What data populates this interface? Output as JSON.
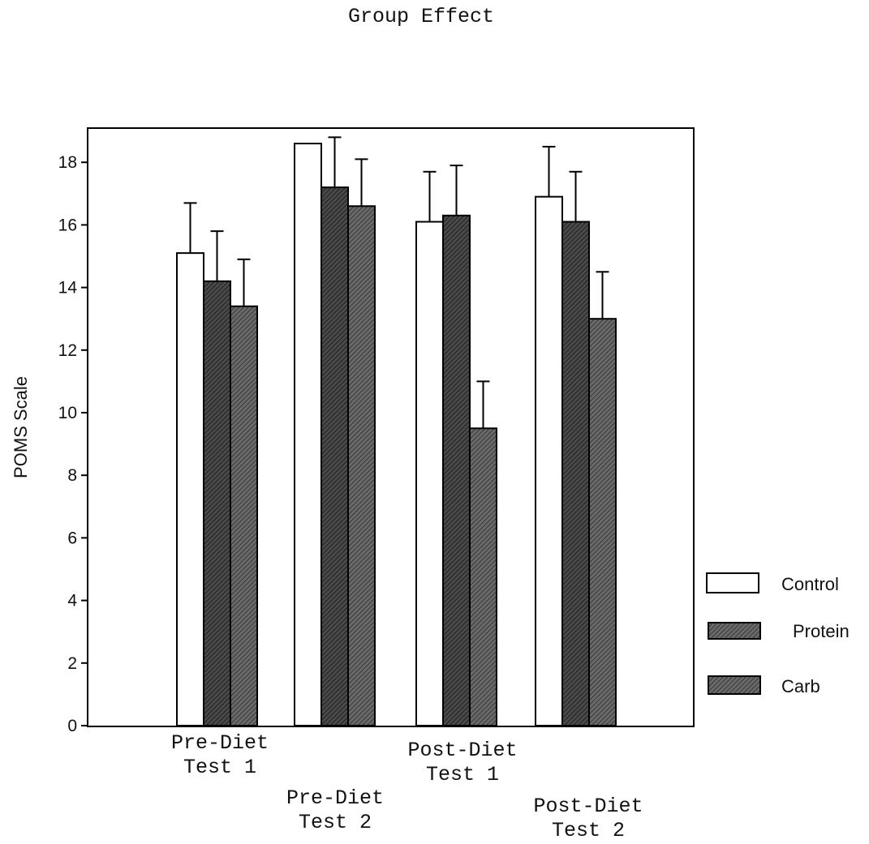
{
  "chart_data": {
    "type": "bar",
    "title": "Group Effect",
    "ylabel": "POMS Scale",
    "xlabel": "",
    "ylim": [
      0,
      19
    ],
    "yticks": [
      0,
      2,
      4,
      6,
      8,
      10,
      12,
      14,
      16,
      18
    ],
    "categories": [
      [
        "Pre-Diet",
        "Test 1"
      ],
      [
        "Pre-Diet",
        "Test 2"
      ],
      [
        "Post-Diet",
        "Test 1"
      ],
      [
        "Post-Diet",
        "Test 2"
      ]
    ],
    "series": [
      {
        "name": "Control",
        "values": [
          15.1,
          18.6,
          16.1,
          16.9
        ],
        "errors": [
          1.6,
          0,
          1.6,
          1.6
        ],
        "fill": "#ffffff"
      },
      {
        "name": "Protein",
        "values": [
          14.2,
          17.2,
          16.3,
          16.1
        ],
        "errors": [
          1.6,
          1.6,
          1.6,
          1.6
        ],
        "fill": "#5a5a5a"
      },
      {
        "name": "Carb",
        "values": [
          13.4,
          16.6,
          9.5,
          13.0
        ],
        "errors": [
          1.5,
          1.5,
          1.5,
          1.5
        ],
        "fill": "#6e6e6e"
      }
    ],
    "grid": false,
    "legend_position": "right"
  }
}
